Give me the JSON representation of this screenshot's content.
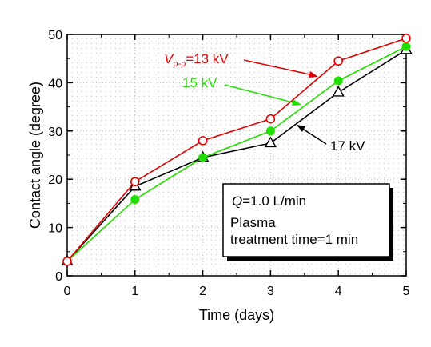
{
  "chart_data": {
    "type": "line",
    "xlabel": "Time (days)",
    "ylabel": "Contact angle (degree)",
    "xlim": [
      0,
      5
    ],
    "ylim": [
      0,
      50
    ],
    "xticks": [
      0,
      1,
      2,
      3,
      4,
      5
    ],
    "yticks": [
      0,
      10,
      20,
      30,
      40,
      50
    ],
    "x": [
      0,
      1,
      2,
      3,
      4,
      5
    ],
    "grid": "dotted",
    "series": [
      {
        "name_main": "V",
        "name_sub": "p-p",
        "name_rest": "=13 kV",
        "color": "#e00000",
        "marker": "open-circle",
        "values": [
          3,
          19.5,
          28,
          32.5,
          44.5,
          49.2
        ]
      },
      {
        "name": "15 kV",
        "color": "#22dd00",
        "marker": "filled-circle",
        "values": [
          3,
          15.8,
          24.5,
          30,
          40.4,
          47.5
        ]
      },
      {
        "name": "17 kV",
        "color": "#000000",
        "marker": "open-triangle",
        "values": [
          3,
          18.5,
          24.5,
          27.5,
          38,
          46.8
        ]
      }
    ],
    "annotation": {
      "flow_var": "Q",
      "flow_rest": "=1.0 L/min",
      "line2": "Plasma",
      "line3": "treatment time=1 min"
    }
  }
}
